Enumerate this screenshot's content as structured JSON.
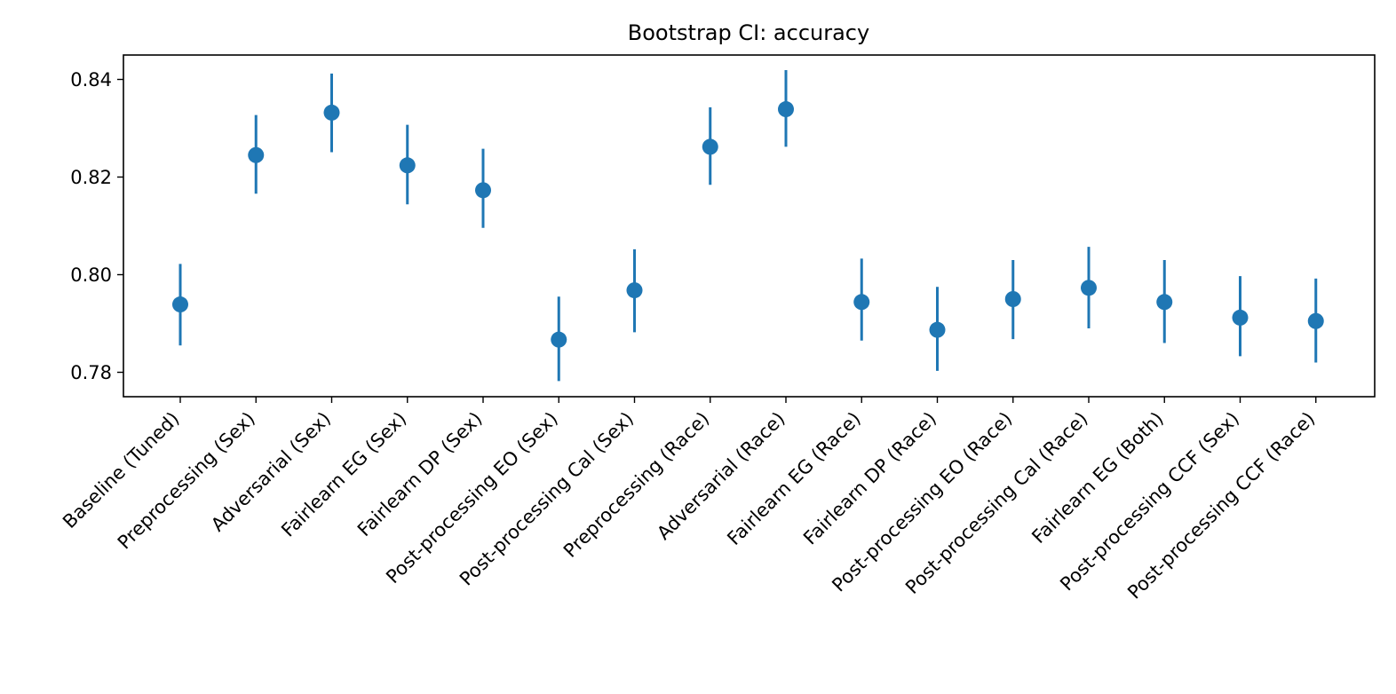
{
  "chart_data": {
    "type": "errorbar",
    "title": "Bootstrap CI: accuracy",
    "xlabel": "",
    "ylabel": "",
    "categories": [
      "Baseline (Tuned)",
      "Preprocessing (Sex)",
      "Adversarial (Sex)",
      "Fairlearn EG (Sex)",
      "Fairlearn DP (Sex)",
      "Post-processing EO (Sex)",
      "Post-processing Cal (Sex)",
      "Preprocessing (Race)",
      "Adversarial (Race)",
      "Fairlearn EG (Race)",
      "Fairlearn DP (Race)",
      "Post-processing EO (Race)",
      "Post-processing Cal (Race)",
      "Fairlearn EG (Both)",
      "Post-processing CCF (Sex)",
      "Post-processing CCF (Race)"
    ],
    "values": [
      0.7939,
      0.8245,
      0.8332,
      0.8224,
      0.8173,
      0.7867,
      0.7968,
      0.8262,
      0.8339,
      0.7944,
      0.7887,
      0.795,
      0.7973,
      0.7944,
      0.7912,
      0.7905
    ],
    "ci_low": [
      0.7855,
      0.8166,
      0.8251,
      0.8144,
      0.8096,
      0.7782,
      0.7882,
      0.8184,
      0.8262,
      0.7865,
      0.7803,
      0.7868,
      0.789,
      0.786,
      0.7833,
      0.782
    ],
    "ci_high": [
      0.8022,
      0.8327,
      0.8412,
      0.8307,
      0.8258,
      0.7955,
      0.8052,
      0.8343,
      0.8419,
      0.8033,
      0.7975,
      0.803,
      0.8057,
      0.803,
      0.7997,
      0.7992
    ],
    "ylim": [
      0.775,
      0.845
    ],
    "yticks": [
      0.78,
      0.8,
      0.82,
      0.84
    ],
    "ytick_labels": [
      "0.78",
      "0.80",
      "0.82",
      "0.84"
    ],
    "grid": false,
    "legend": "none",
    "color": "#1f77b4"
  }
}
